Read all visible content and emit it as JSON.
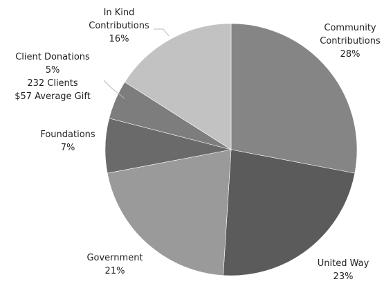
{
  "chart_data": {
    "type": "pie",
    "start_angle_deg": 0,
    "direction": "clockwise",
    "slices": [
      {
        "label": [
          "Community",
          "Contributions"
        ],
        "value": 28,
        "value_label": "28%",
        "color": "#858585"
      },
      {
        "label": [
          "United Way"
        ],
        "value": 23,
        "value_label": "23%",
        "color": "#5b5b5b"
      },
      {
        "label": [
          "Government"
        ],
        "value": 21,
        "value_label": "21%",
        "color": "#9a9a9a"
      },
      {
        "label": [
          "Foundations"
        ],
        "value": 7,
        "value_label": "7%",
        "color": "#6a6a6a"
      },
      {
        "label": [
          "Client Donations"
        ],
        "value": 5,
        "value_label": "5%",
        "extra": [
          "232 Clients",
          "$57 Average Gift"
        ],
        "color": "#7d7d7d"
      },
      {
        "label": [
          "In Kind",
          "Contributions"
        ],
        "value": 16,
        "value_label": "16%",
        "color": "#c2c2c2"
      }
    ]
  }
}
